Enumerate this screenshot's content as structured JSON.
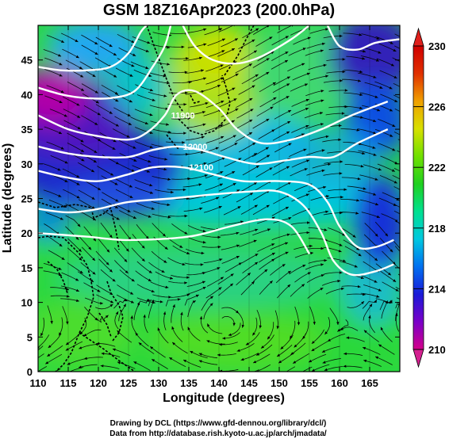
{
  "title": "GSM 18Z16Apr2023 (200.0hPa)",
  "x_axis_label": "Longitude (degrees)",
  "y_axis_label": "Latitude  (degrees)",
  "credit_line_1": "Drawing by DCL (https://www.gfd-dennou.org/library/dcl/)",
  "credit_line_2": "Data from http://database.rish.kyoto-u.ac.jp/arch/jmadata/",
  "chart_data": {
    "type": "heatmap",
    "x_ticks": [
      110,
      115,
      120,
      125,
      130,
      135,
      140,
      145,
      150,
      155,
      160,
      165
    ],
    "x_tick_labels": [
      "110",
      "115",
      "120",
      "125",
      "130",
      "135",
      "140",
      "145",
      "150",
      "155",
      "160",
      "165"
    ],
    "y_ticks": [
      0,
      5,
      10,
      15,
      20,
      25,
      30,
      35,
      40,
      45
    ],
    "y_tick_labels": [
      "0",
      "5",
      "10",
      "15",
      "20",
      "25",
      "30",
      "35",
      "40",
      "45"
    ],
    "xlim": [
      110,
      170
    ],
    "ylim": [
      0,
      50
    ],
    "colorbar": {
      "range": [
        210,
        230
      ],
      "ticks": [
        210,
        214,
        218,
        222,
        226,
        230
      ],
      "tick_labels": [
        "210",
        "214",
        "218",
        "222",
        "226",
        "230"
      ],
      "colors": [
        "#d4008a",
        "#7a00c8",
        "#1a1ad8",
        "#0070f0",
        "#00c8e0",
        "#00e090",
        "#20d020",
        "#70e000",
        "#d8e000",
        "#f0a000",
        "#e03000",
        "#d00000"
      ]
    },
    "height_contours": [
      {
        "label": "11900",
        "points": [
          [
            110,
            37
          ],
          [
            115,
            35
          ],
          [
            120,
            34
          ],
          [
            125,
            33.5
          ],
          [
            128,
            34.5
          ],
          [
            131,
            37
          ],
          [
            133,
            40
          ],
          [
            136,
            40.5
          ],
          [
            140,
            38
          ],
          [
            143,
            35
          ],
          [
            147,
            33
          ],
          [
            152,
            33.5
          ],
          [
            157,
            35
          ],
          [
            162,
            37
          ],
          [
            168,
            39
          ]
        ]
      },
      {
        "label": "12000",
        "points": [
          [
            110,
            32.5
          ],
          [
            115,
            31.5
          ],
          [
            120,
            31
          ],
          [
            125,
            31
          ],
          [
            129,
            32
          ],
          [
            133,
            32.5
          ],
          [
            137,
            32
          ],
          [
            141,
            31
          ],
          [
            146,
            30
          ],
          [
            151,
            30.5
          ],
          [
            155,
            31
          ],
          [
            159,
            31
          ],
          [
            163,
            33
          ],
          [
            168,
            35
          ]
        ]
      },
      {
        "label": "12100",
        "points": [
          [
            110,
            29
          ],
          [
            115,
            28
          ],
          [
            120,
            27.5
          ],
          [
            125,
            28.5
          ],
          [
            129,
            29.5
          ],
          [
            134,
            29.5
          ],
          [
            139,
            28.5
          ],
          [
            144,
            27.5
          ],
          [
            150,
            27.5
          ],
          [
            155,
            27
          ],
          [
            158,
            24.5
          ],
          [
            160,
            21
          ],
          [
            163,
            18
          ],
          [
            166,
            18
          ],
          [
            169,
            19
          ]
        ]
      },
      {
        "label": "",
        "points": [
          [
            110,
            23.5
          ],
          [
            115,
            23
          ],
          [
            120,
            23.5
          ],
          [
            125,
            24.5
          ],
          [
            132,
            25
          ],
          [
            138,
            25.5
          ],
          [
            145,
            26
          ],
          [
            150,
            26
          ],
          [
            154,
            24
          ],
          [
            157,
            20
          ],
          [
            159,
            16
          ],
          [
            162,
            14
          ],
          [
            166,
            14.5
          ],
          [
            169,
            15.5
          ]
        ]
      },
      {
        "label": "",
        "points": [
          [
            110,
            20
          ],
          [
            118,
            19.5
          ],
          [
            125,
            19
          ],
          [
            135,
            19.5
          ],
          [
            142,
            21
          ],
          [
            148,
            22
          ],
          [
            152,
            21
          ],
          [
            155,
            17
          ]
        ]
      },
      {
        "label": "",
        "points": [
          [
            110,
            41
          ],
          [
            114,
            40
          ],
          [
            118,
            39.5
          ],
          [
            122,
            39.5
          ],
          [
            126,
            40.5
          ],
          [
            129,
            44
          ],
          [
            131,
            47
          ],
          [
            132,
            50
          ]
        ]
      },
      {
        "label": "",
        "points": [
          [
            134,
            50
          ],
          [
            136,
            47
          ],
          [
            139,
            45
          ],
          [
            143,
            44.5
          ],
          [
            147,
            45.5
          ],
          [
            152,
            48
          ],
          [
            155,
            50
          ]
        ]
      },
      {
        "label": "",
        "points": [
          [
            158,
            50
          ],
          [
            160,
            47
          ],
          [
            163,
            46.5
          ],
          [
            166,
            47.5
          ],
          [
            170,
            48
          ]
        ]
      },
      {
        "label": "",
        "points": [
          [
            110,
            44
          ],
          [
            114,
            43.5
          ],
          [
            118,
            43.5
          ],
          [
            122,
            44
          ],
          [
            125,
            46
          ],
          [
            127,
            49
          ],
          [
            128,
            50
          ]
        ]
      }
    ]
  }
}
